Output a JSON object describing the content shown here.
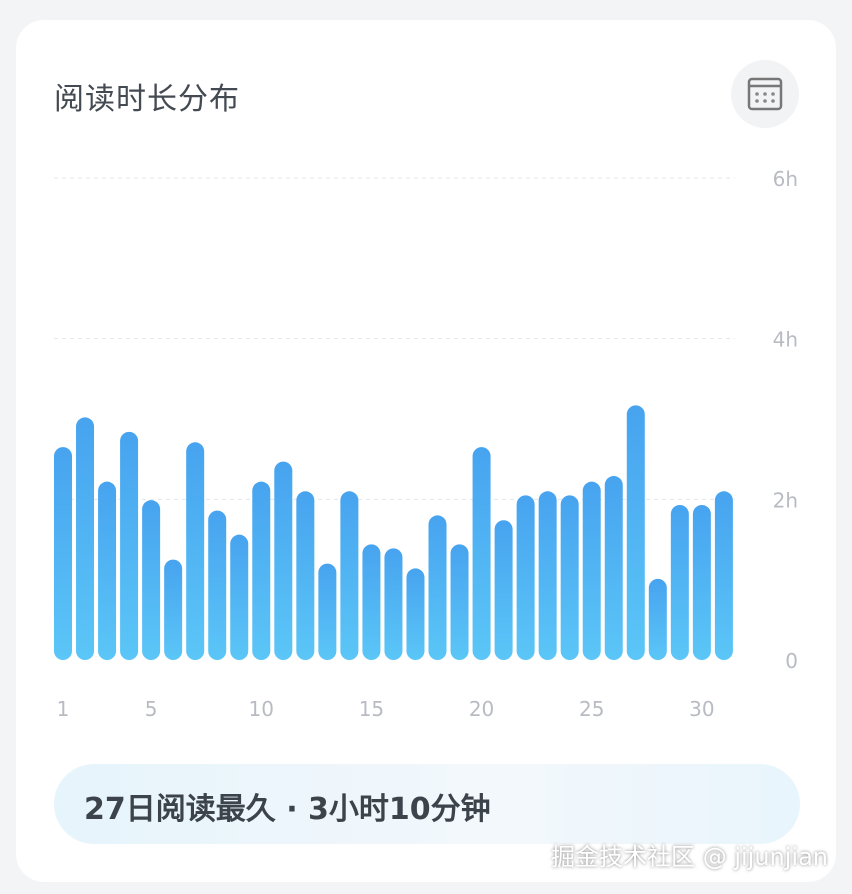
{
  "header": {
    "title": "阅读时长分布",
    "calendar_icon": "calendar-icon"
  },
  "summary": {
    "text": "27日阅读最久 · 3小时10分钟"
  },
  "watermark": "掘金技术社区 @ jijunjian",
  "colors": {
    "bar_top": "#47a3ef",
    "bar_bottom": "#5bc6f7",
    "grid": "#e3e6ea",
    "tick": "#b8bcc2"
  },
  "chart_data": {
    "type": "bar",
    "categories": [
      1,
      2,
      3,
      4,
      5,
      6,
      7,
      8,
      9,
      10,
      11,
      12,
      13,
      14,
      15,
      16,
      17,
      18,
      19,
      20,
      21,
      22,
      23,
      24,
      25,
      26,
      27,
      28,
      29,
      30,
      31
    ],
    "values": [
      2.65,
      3.02,
      2.22,
      2.84,
      1.99,
      1.25,
      2.71,
      1.86,
      1.56,
      2.22,
      2.47,
      2.1,
      1.2,
      2.1,
      1.44,
      1.39,
      1.14,
      1.8,
      1.44,
      2.65,
      1.74,
      2.05,
      2.1,
      2.05,
      2.22,
      2.29,
      3.17,
      1.01,
      1.93,
      1.93,
      2.1
    ],
    "ylim": [
      0,
      6
    ],
    "yticks": [
      {
        "v": 0,
        "label": "0"
      },
      {
        "v": 2,
        "label": "2h"
      },
      {
        "v": 4,
        "label": "4h"
      },
      {
        "v": 6,
        "label": "6h"
      }
    ],
    "xticks": [
      {
        "v": 1,
        "label": "1"
      },
      {
        "v": 5,
        "label": "5"
      },
      {
        "v": 10,
        "label": "10"
      },
      {
        "v": 15,
        "label": "15"
      },
      {
        "v": 20,
        "label": "20"
      },
      {
        "v": 25,
        "label": "25"
      },
      {
        "v": 30,
        "label": "30"
      }
    ],
    "grid": true,
    "unit": "hours"
  }
}
